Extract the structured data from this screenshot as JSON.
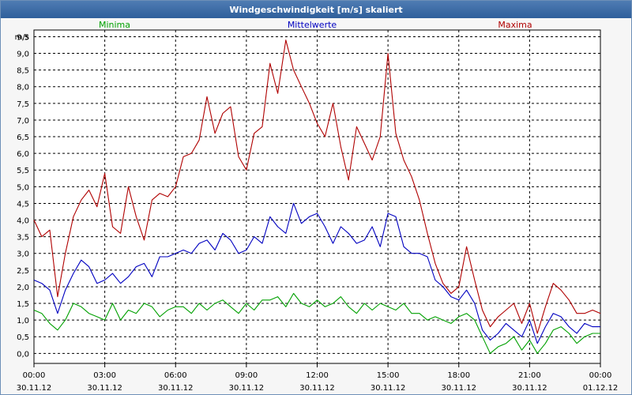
{
  "window": {
    "title": "Windgeschwindigkeit [m/s] skaliert"
  },
  "colors": {
    "min": "#00a000",
    "mean": "#0000c0",
    "max": "#b00000",
    "grid": "#000000"
  },
  "chart_data": {
    "type": "line",
    "title": "Windgeschwindigkeit [m/s] skaliert",
    "ylabel": "m/s",
    "ylim": [
      -0.3,
      9.7
    ],
    "yticks": [
      "0,0",
      "0,5",
      "1,0",
      "1,5",
      "2,0",
      "2,5",
      "3,0",
      "3,5",
      "4,0",
      "4,5",
      "5,0",
      "5,5",
      "6,0",
      "6,5",
      "7,0",
      "7,5",
      "8,0",
      "8,5",
      "9,0",
      "9,5"
    ],
    "xticks": [
      {
        "time": "00:00",
        "date": "30.11.12"
      },
      {
        "time": "03:00",
        "date": "30.11.12"
      },
      {
        "time": "06:00",
        "date": "30.11.12"
      },
      {
        "time": "09:00",
        "date": "30.11.12"
      },
      {
        "time": "12:00",
        "date": "30.11.12"
      },
      {
        "time": "15:00",
        "date": "30.11.12"
      },
      {
        "time": "18:00",
        "date": "30.11.12"
      },
      {
        "time": "21:00",
        "date": "30.11.12"
      },
      {
        "time": "00:00",
        "date": "01.12.12"
      }
    ],
    "x_unit": "hours since 00:00 30.11.12",
    "grid": true,
    "legend_position": "top",
    "series": [
      {
        "name": "Minima",
        "color": "#00a000",
        "x": [
          0,
          0.33,
          0.67,
          1,
          1.33,
          1.67,
          2,
          2.33,
          2.67,
          3,
          3.33,
          3.67,
          4,
          4.33,
          4.67,
          5,
          5.33,
          5.67,
          6,
          6.33,
          6.67,
          7,
          7.33,
          7.67,
          8,
          8.33,
          8.67,
          9,
          9.33,
          9.67,
          10,
          10.33,
          10.67,
          11,
          11.33,
          11.67,
          12,
          12.33,
          12.67,
          13,
          13.33,
          13.67,
          14,
          14.33,
          14.67,
          15,
          15.33,
          15.67,
          16,
          16.33,
          16.67,
          17,
          17.33,
          17.67,
          18,
          18.33,
          18.67,
          19,
          19.33,
          19.67,
          20,
          20.33,
          20.67,
          21,
          21.33,
          21.67,
          22,
          22.33,
          22.67,
          23,
          23.33,
          23.67,
          24
        ],
        "values": [
          1.3,
          1.2,
          0.9,
          0.7,
          1.0,
          1.5,
          1.4,
          1.2,
          1.1,
          1.0,
          1.5,
          1.0,
          1.3,
          1.2,
          1.5,
          1.4,
          1.1,
          1.3,
          1.4,
          1.4,
          1.2,
          1.5,
          1.3,
          1.5,
          1.6,
          1.4,
          1.2,
          1.5,
          1.3,
          1.6,
          1.6,
          1.7,
          1.4,
          1.8,
          1.5,
          1.4,
          1.6,
          1.4,
          1.5,
          1.7,
          1.4,
          1.2,
          1.5,
          1.3,
          1.5,
          1.4,
          1.3,
          1.5,
          1.2,
          1.2,
          1.0,
          1.1,
          1.0,
          0.9,
          1.1,
          1.2,
          1.0,
          0.5,
          0.0,
          0.2,
          0.3,
          0.5,
          0.1,
          0.4,
          0.0,
          0.3,
          0.7,
          0.8,
          0.6,
          0.3,
          0.5,
          0.6,
          0.6
        ]
      },
      {
        "name": "Mittelwerte",
        "color": "#0000c0",
        "x": [
          0,
          0.33,
          0.67,
          1,
          1.33,
          1.67,
          2,
          2.33,
          2.67,
          3,
          3.33,
          3.67,
          4,
          4.33,
          4.67,
          5,
          5.33,
          5.67,
          6,
          6.33,
          6.67,
          7,
          7.33,
          7.67,
          8,
          8.33,
          8.67,
          9,
          9.33,
          9.67,
          10,
          10.33,
          10.67,
          11,
          11.33,
          11.67,
          12,
          12.33,
          12.67,
          13,
          13.33,
          13.67,
          14,
          14.33,
          14.67,
          15,
          15.33,
          15.67,
          16,
          16.33,
          16.67,
          17,
          17.33,
          17.67,
          18,
          18.33,
          18.67,
          19,
          19.33,
          19.67,
          20,
          20.33,
          20.67,
          21,
          21.33,
          21.67,
          22,
          22.33,
          22.67,
          23,
          23.33,
          23.67,
          24
        ],
        "values": [
          2.2,
          2.1,
          1.9,
          1.2,
          1.9,
          2.4,
          2.8,
          2.6,
          2.1,
          2.2,
          2.4,
          2.1,
          2.3,
          2.6,
          2.7,
          2.3,
          2.9,
          2.9,
          3.0,
          3.1,
          3.0,
          3.3,
          3.4,
          3.1,
          3.6,
          3.4,
          3.0,
          3.1,
          3.5,
          3.3,
          4.1,
          3.8,
          3.6,
          4.5,
          3.9,
          4.1,
          4.2,
          3.8,
          3.3,
          3.8,
          3.6,
          3.3,
          3.4,
          3.8,
          3.2,
          4.2,
          4.1,
          3.2,
          3.0,
          3.0,
          2.9,
          2.2,
          2.0,
          1.7,
          1.6,
          1.9,
          1.5,
          0.7,
          0.4,
          0.6,
          0.9,
          0.7,
          0.5,
          1.0,
          0.3,
          0.8,
          1.2,
          1.1,
          0.8,
          0.6,
          0.9,
          0.8,
          0.8
        ]
      },
      {
        "name": "Maxima",
        "color": "#b00000",
        "x": [
          0,
          0.33,
          0.67,
          1,
          1.33,
          1.67,
          2,
          2.33,
          2.67,
          3,
          3.33,
          3.67,
          4,
          4.33,
          4.67,
          5,
          5.33,
          5.67,
          6,
          6.33,
          6.67,
          7,
          7.33,
          7.67,
          8,
          8.33,
          8.67,
          9,
          9.33,
          9.67,
          10,
          10.33,
          10.67,
          11,
          11.33,
          11.67,
          12,
          12.33,
          12.67,
          13,
          13.33,
          13.67,
          14,
          14.33,
          14.67,
          15,
          15.33,
          15.67,
          16,
          16.33,
          16.67,
          17,
          17.33,
          17.67,
          18,
          18.33,
          18.67,
          19,
          19.33,
          19.67,
          20,
          20.33,
          20.67,
          21,
          21.33,
          21.67,
          22,
          22.33,
          22.67,
          23,
          23.33,
          23.67,
          24
        ],
        "values": [
          4.0,
          3.5,
          3.7,
          1.7,
          3.0,
          4.1,
          4.6,
          4.9,
          4.4,
          5.4,
          3.8,
          3.6,
          5.0,
          4.1,
          3.4,
          4.6,
          4.8,
          4.7,
          5.0,
          5.9,
          6.0,
          6.4,
          7.7,
          6.6,
          7.2,
          7.4,
          5.9,
          5.5,
          6.6,
          6.8,
          8.7,
          7.8,
          9.4,
          8.5,
          8.0,
          7.5,
          6.9,
          6.5,
          7.5,
          6.2,
          5.2,
          6.8,
          6.3,
          5.8,
          6.5,
          9.0,
          6.6,
          5.8,
          5.3,
          4.6,
          3.6,
          2.7,
          2.1,
          1.8,
          2.0,
          3.2,
          2.2,
          1.3,
          0.8,
          1.1,
          1.3,
          1.5,
          0.9,
          1.5,
          0.6,
          1.4,
          2.1,
          1.9,
          1.6,
          1.2,
          1.2,
          1.3,
          1.2
        ]
      }
    ]
  }
}
